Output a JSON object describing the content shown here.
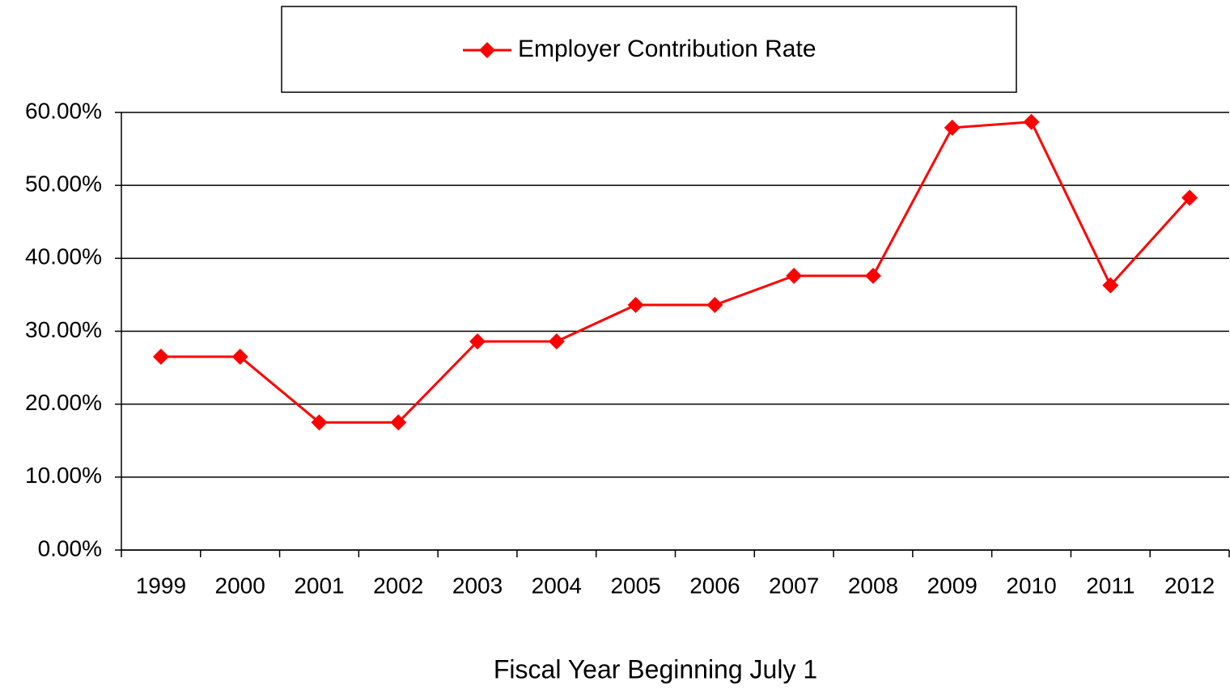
{
  "chart_data": {
    "type": "line",
    "x_label": "Fiscal Year Beginning July 1",
    "categories": [
      "1999",
      "2000",
      "2001",
      "2002",
      "2003",
      "2004",
      "2005",
      "2006",
      "2007",
      "2008",
      "2009",
      "2010",
      "2011",
      "2012"
    ],
    "series": [
      {
        "name": "Employer Contribution Rate",
        "color": "#ff0000",
        "values": [
          26.5,
          26.5,
          17.5,
          17.5,
          28.6,
          28.6,
          33.6,
          33.6,
          37.6,
          37.6,
          57.9,
          58.7,
          36.3,
          48.3
        ]
      }
    ],
    "ylim": [
      0,
      60
    ],
    "yticks": [
      {
        "value": 0,
        "label": "0.00%"
      },
      {
        "value": 10,
        "label": "10.00%"
      },
      {
        "value": 20,
        "label": "20.00%"
      },
      {
        "value": 30,
        "label": "30.00%"
      },
      {
        "value": 40,
        "label": "40.00%"
      },
      {
        "value": 50,
        "label": "50.00%"
      },
      {
        "value": 60,
        "label": "60.00%"
      }
    ],
    "grid": true,
    "legend": "top"
  }
}
